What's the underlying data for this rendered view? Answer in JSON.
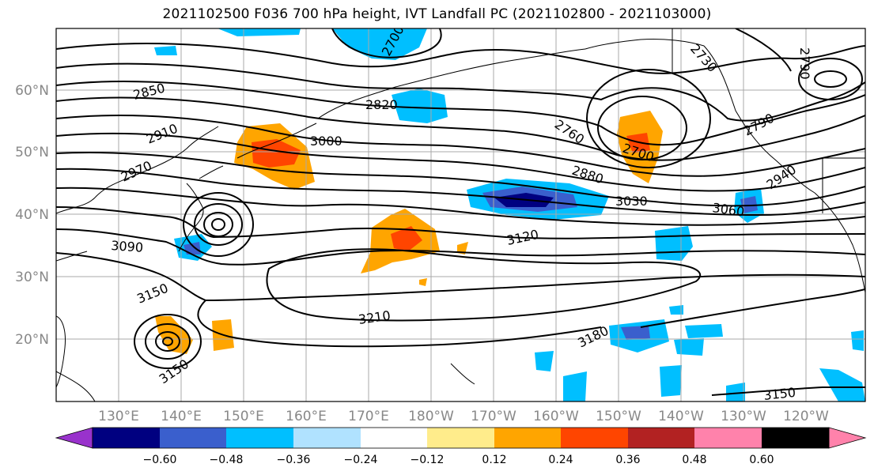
{
  "title": "2021102500 F036 700 hPa height, IVT Landfall PC (2021102800 - 2021103000)",
  "lat_labels": [
    "60°N",
    "50°N",
    "40°N",
    "30°N",
    "20°N"
  ],
  "lon_labels": [
    "130°E",
    "140°E",
    "150°E",
    "160°E",
    "170°E",
    "180°W",
    "170°W",
    "160°W",
    "150°W",
    "140°W",
    "130°W",
    "120°W"
  ],
  "contour_labels": [
    "2850",
    "2820",
    "2910",
    "3000",
    "2760",
    "2700",
    "2730",
    "2790",
    "2970",
    "2880",
    "2940",
    "3030",
    "3060",
    "3090",
    "3120",
    "3150",
    "3210",
    "3180",
    "3150",
    "3150",
    "2700",
    "2790"
  ],
  "colorbar": {
    "colors": [
      "#9932cc",
      "#000080",
      "#3a5fcd",
      "#00bfff",
      "#b0e2ff",
      "#ffffff",
      "#ffec8b",
      "#ffa500",
      "#ff4500",
      "#b22222",
      "#ff82ab"
    ],
    "tick_labels": [
      "−0.60",
      "−0.48",
      "−0.36",
      "−0.24",
      "−0.12",
      "0.12",
      "0.24",
      "0.36",
      "0.48",
      "0.60"
    ]
  }
}
